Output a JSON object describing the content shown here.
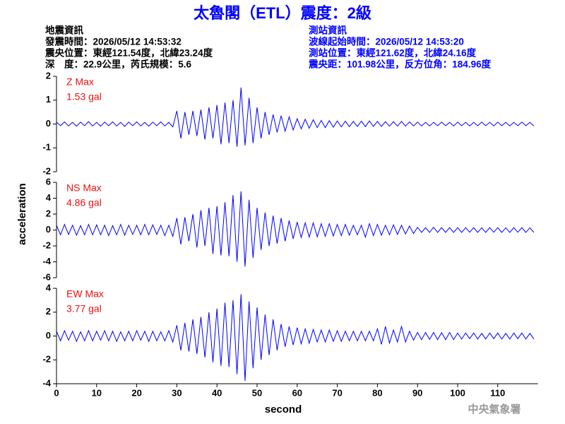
{
  "header": {
    "title": "太魯閣（ETL）震度：2級",
    "left": [
      "地震資訊",
      "發震時間：2026/05/12 14:53:32",
      "震央位置：東經121.54度，北緯23.24度",
      "深　度：22.9公里，芮氏規模：5.6"
    ],
    "right": [
      "測站資訊",
      "波線起始時間：2026/05/12 14:53:20",
      "測站位置：東經121.62度，北緯24.16度",
      "震央距：101.98公里，反方位角：184.96度"
    ],
    "agency": "中央氣象署"
  },
  "chart_data": [
    {
      "type": "line",
      "annotation": "1.53 gal",
      "xlim": [
        0,
        120
      ],
      "ylim": [
        -2,
        2
      ],
      "yticks": [
        -2,
        -1,
        0,
        1,
        2
      ],
      "x": [
        0,
        1,
        2,
        3,
        4,
        5,
        6,
        7,
        8,
        9,
        10,
        11,
        12,
        13,
        14,
        15,
        16,
        17,
        18,
        19,
        20,
        21,
        22,
        23,
        24,
        25,
        26,
        27,
        28,
        29,
        30,
        31,
        32,
        33,
        34,
        35,
        36,
        37,
        38,
        39,
        40,
        41,
        42,
        43,
        44,
        45,
        46,
        47,
        48,
        49,
        50,
        51,
        52,
        53,
        54,
        55,
        56,
        57,
        58,
        59,
        60,
        61,
        62,
        63,
        64,
        65,
        66,
        67,
        68,
        69,
        70,
        71,
        72,
        73,
        74,
        75,
        76,
        77,
        78,
        79,
        80,
        81,
        82,
        83,
        84,
        85,
        86,
        87,
        88,
        89,
        90,
        91,
        92,
        93,
        94,
        95,
        96,
        97,
        98,
        99,
        100,
        101,
        102,
        103,
        104,
        105,
        106,
        107,
        108,
        109,
        110,
        111,
        112,
        113,
        114,
        115,
        116,
        117,
        118,
        119
      ],
      "series": [
        {
          "name": "Z Max",
          "color": "#0000ff",
          "values": [
            0.08,
            -0.07,
            0.09,
            -0.08,
            0.07,
            -0.09,
            0.08,
            -0.07,
            0.1,
            -0.08,
            0.07,
            -0.09,
            0.08,
            -0.07,
            0.09,
            -0.08,
            0.07,
            -0.1,
            0.08,
            -0.07,
            0.09,
            -0.08,
            0.07,
            -0.09,
            0.08,
            -0.07,
            0.09,
            -0.08,
            0.07,
            -0.12,
            0.55,
            -0.6,
            0.5,
            -0.45,
            0.55,
            -0.5,
            0.6,
            -0.65,
            0.7,
            -0.6,
            0.8,
            -0.85,
            0.9,
            -0.8,
            1.0,
            -0.95,
            1.53,
            -0.9,
            1.1,
            -0.8,
            0.7,
            -0.6,
            0.5,
            -0.45,
            0.4,
            -0.35,
            0.35,
            -0.3,
            0.3,
            -0.25,
            0.22,
            -0.2,
            0.2,
            -0.18,
            0.18,
            -0.15,
            0.15,
            -0.15,
            0.14,
            -0.13,
            0.13,
            -0.12,
            0.12,
            -0.11,
            0.11,
            -0.1,
            0.12,
            -0.11,
            0.13,
            -0.1,
            0.11,
            -0.1,
            0.1,
            -0.09,
            0.1,
            -0.09,
            0.11,
            -0.09,
            0.09,
            -0.08,
            0.08,
            -0.08,
            0.07,
            -0.08,
            0.07,
            -0.07,
            0.08,
            -0.07,
            0.07,
            -0.08,
            0.08,
            -0.07,
            0.07,
            -0.08,
            0.07,
            -0.07,
            0.08,
            -0.07,
            0.07,
            -0.08,
            0.08,
            -0.07,
            0.07,
            -0.08,
            0.07,
            -0.07,
            0.08,
            -0.07,
            0.07,
            -0.08
          ]
        }
      ]
    },
    {
      "type": "line",
      "annotation": "4.86 gal",
      "ylabel": "acceleration",
      "xlim": [
        0,
        120
      ],
      "ylim": [
        -6,
        6
      ],
      "yticks": [
        -6,
        -4,
        -2,
        0,
        2,
        4,
        6
      ],
      "x": [
        0,
        1,
        2,
        3,
        4,
        5,
        6,
        7,
        8,
        9,
        10,
        11,
        12,
        13,
        14,
        15,
        16,
        17,
        18,
        19,
        20,
        21,
        22,
        23,
        24,
        25,
        26,
        27,
        28,
        29,
        30,
        31,
        32,
        33,
        34,
        35,
        36,
        37,
        38,
        39,
        40,
        41,
        42,
        43,
        44,
        45,
        46,
        47,
        48,
        49,
        50,
        51,
        52,
        53,
        54,
        55,
        56,
        57,
        58,
        59,
        60,
        61,
        62,
        63,
        64,
        65,
        66,
        67,
        68,
        69,
        70,
        71,
        72,
        73,
        74,
        75,
        76,
        77,
        78,
        79,
        80,
        81,
        82,
        83,
        84,
        85,
        86,
        87,
        88,
        89,
        90,
        91,
        92,
        93,
        94,
        95,
        96,
        97,
        98,
        99,
        100,
        101,
        102,
        103,
        104,
        105,
        106,
        107,
        108,
        109,
        110,
        111,
        112,
        113,
        114,
        115,
        116,
        117,
        118,
        119
      ],
      "series": [
        {
          "name": "NS Max",
          "color": "#0000ff",
          "values": [
            0.6,
            -0.6,
            0.7,
            -0.55,
            0.6,
            -0.65,
            0.55,
            -0.6,
            0.7,
            -0.6,
            0.65,
            -0.6,
            0.6,
            -0.7,
            0.55,
            -0.6,
            0.7,
            -0.65,
            0.6,
            -0.55,
            0.6,
            -0.6,
            0.7,
            -0.6,
            0.65,
            -0.55,
            0.6,
            -0.7,
            0.6,
            -0.8,
            1.5,
            -1.8,
            1.6,
            -1.4,
            2.0,
            -2.2,
            2.5,
            -2.0,
            2.8,
            -3.0,
            3.0,
            -3.2,
            3.5,
            -3.3,
            4.4,
            -4.0,
            4.86,
            -4.6,
            3.8,
            -3.5,
            2.8,
            -2.5,
            2.2,
            -2.0,
            1.8,
            -1.7,
            1.5,
            -1.4,
            1.2,
            -1.1,
            1.0,
            -0.95,
            0.9,
            -0.9,
            0.9,
            -0.85,
            0.8,
            -0.8,
            0.8,
            -0.75,
            0.7,
            -0.7,
            0.7,
            -0.65,
            0.6,
            -0.6,
            0.6,
            -0.9,
            0.8,
            -0.7,
            0.7,
            -0.65,
            0.6,
            -0.6,
            0.65,
            -0.55,
            0.6,
            -0.5,
            0.5,
            -0.45,
            0.35,
            -0.3,
            0.3,
            -0.3,
            0.35,
            -0.3,
            0.3,
            -0.3,
            0.3,
            -0.3,
            0.3,
            -0.3,
            0.3,
            -0.28,
            0.3,
            -0.3,
            0.28,
            -0.3,
            0.3,
            -0.28,
            0.3,
            -0.3,
            0.28,
            -0.3,
            0.3,
            -0.28,
            0.3,
            -0.3,
            0.28,
            -0.3
          ]
        }
      ]
    },
    {
      "type": "line",
      "annotation": "3.77 gal",
      "xlabel": "second",
      "xlim": [
        0,
        120
      ],
      "ylim": [
        -4,
        4
      ],
      "yticks": [
        -4,
        -2,
        0,
        2,
        4
      ],
      "xticks": [
        0,
        10,
        20,
        30,
        40,
        50,
        60,
        70,
        80,
        90,
        100,
        110
      ],
      "x": [
        0,
        1,
        2,
        3,
        4,
        5,
        6,
        7,
        8,
        9,
        10,
        11,
        12,
        13,
        14,
        15,
        16,
        17,
        18,
        19,
        20,
        21,
        22,
        23,
        24,
        25,
        26,
        27,
        28,
        29,
        30,
        31,
        32,
        33,
        34,
        35,
        36,
        37,
        38,
        39,
        40,
        41,
        42,
        43,
        44,
        45,
        46,
        47,
        48,
        49,
        50,
        51,
        52,
        53,
        54,
        55,
        56,
        57,
        58,
        59,
        60,
        61,
        62,
        63,
        64,
        65,
        66,
        67,
        68,
        69,
        70,
        71,
        72,
        73,
        74,
        75,
        76,
        77,
        78,
        79,
        80,
        81,
        82,
        83,
        84,
        85,
        86,
        87,
        88,
        89,
        90,
        91,
        92,
        93,
        94,
        95,
        96,
        97,
        98,
        99,
        100,
        101,
        102,
        103,
        104,
        105,
        106,
        107,
        108,
        109,
        110,
        111,
        112,
        113,
        114,
        115,
        116,
        117,
        118,
        119
      ],
      "series": [
        {
          "name": "EW Max",
          "color": "#0000ff",
          "values": [
            0.4,
            -0.4,
            0.45,
            -0.35,
            0.4,
            -0.45,
            0.35,
            -0.4,
            0.45,
            -0.4,
            0.4,
            -0.35,
            0.45,
            -0.4,
            0.4,
            -0.45,
            0.35,
            -0.4,
            0.4,
            -0.4,
            0.45,
            -0.35,
            0.4,
            -0.45,
            0.4,
            -0.4,
            0.35,
            -0.4,
            0.45,
            -0.5,
            0.9,
            -1.2,
            1.1,
            -1.3,
            1.4,
            -1.5,
            1.6,
            -1.8,
            2.0,
            -2.2,
            2.3,
            -2.5,
            2.8,
            -2.6,
            3.0,
            -3.2,
            3.5,
            -3.77,
            2.9,
            -2.7,
            2.4,
            -2.0,
            1.8,
            -1.6,
            1.4,
            -1.2,
            1.0,
            -0.9,
            0.8,
            -0.75,
            0.7,
            -0.65,
            0.6,
            -0.6,
            0.55,
            -0.5,
            0.5,
            -0.5,
            0.5,
            -0.45,
            0.45,
            -0.45,
            0.4,
            -0.4,
            0.4,
            -0.4,
            0.4,
            -0.4,
            0.4,
            -0.4,
            0.6,
            -0.7,
            0.8,
            -0.6,
            0.5,
            -0.5,
            0.8,
            -0.5,
            0.4,
            -0.35,
            0.3,
            -0.3,
            0.3,
            -0.28,
            0.3,
            -0.3,
            0.28,
            -0.3,
            0.3,
            -0.3,
            0.25,
            -0.25,
            0.25,
            -0.22,
            0.25,
            -0.25,
            0.22,
            -0.25,
            0.25,
            -0.22,
            0.25,
            -0.25,
            0.22,
            -0.25,
            0.25,
            -0.22,
            0.25,
            -0.25,
            0.22,
            -0.25
          ]
        }
      ]
    }
  ]
}
